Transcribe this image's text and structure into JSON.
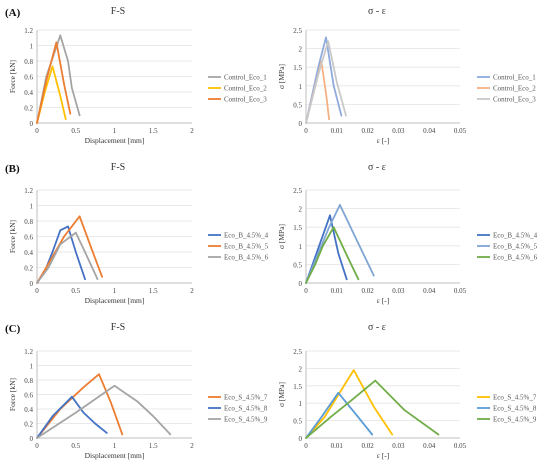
{
  "chart_data": [
    {
      "type": "line",
      "row_label": "(A)",
      "title": "F-S",
      "xlabel": "Displacement [mm]",
      "ylabel": "Force [kN]",
      "xlim": [
        0,
        2
      ],
      "ylim": [
        0,
        1.2
      ],
      "xticks": [
        "0",
        "0.5",
        "1",
        "1.5",
        "2"
      ],
      "yticks": [
        "0",
        "0.2",
        "0.4",
        "0.6",
        "0.8",
        "1",
        "1.2"
      ],
      "xtick_values": [
        0,
        0.5,
        1,
        1.5,
        2
      ],
      "ytick_values": [
        0,
        0.2,
        0.4,
        0.6,
        0.8,
        1,
        1.2
      ],
      "legend": "right",
      "series": [
        {
          "name": "Control_Eco_1",
          "color": "#a5a5a5",
          "x": [
            0,
            0.12,
            0.3,
            0.4,
            0.45,
            0.55
          ],
          "y": [
            0,
            0.6,
            1.13,
            0.8,
            0.45,
            0.1
          ]
        },
        {
          "name": "Control_Eco_2",
          "color": "#ffc000",
          "x": [
            0,
            0.1,
            0.2,
            0.3,
            0.37
          ],
          "y": [
            0,
            0.4,
            0.73,
            0.35,
            0.05
          ]
        },
        {
          "name": "Control_Eco_3",
          "color": "#ed7d31",
          "x": [
            0,
            0.12,
            0.25,
            0.35,
            0.43
          ],
          "y": [
            0,
            0.55,
            1.04,
            0.5,
            0.12
          ]
        }
      ]
    },
    {
      "type": "line",
      "row_label": "",
      "title": "σ - ε",
      "xlabel": "ε [-]",
      "ylabel": "σ [MPa]",
      "xlim": [
        0,
        0.05
      ],
      "ylim": [
        0,
        2.5
      ],
      "xticks": [
        "0",
        "0.01",
        "0.02",
        "0.03",
        "0.04",
        "0.05"
      ],
      "yticks": [
        "0",
        "0.5",
        "1",
        "1.5",
        "2",
        "2.5"
      ],
      "xtick_values": [
        0,
        0.01,
        0.02,
        0.03,
        0.04,
        0.05
      ],
      "ytick_values": [
        0,
        0.5,
        1,
        1.5,
        2,
        2.5
      ],
      "legend": "right",
      "series": [
        {
          "name": "Control_Eco_1",
          "color": "#8faadc",
          "x": [
            0,
            0.004,
            0.0065,
            0.009,
            0.0115
          ],
          "y": [
            0,
            1.5,
            2.3,
            1.0,
            0.2
          ]
        },
        {
          "name": "Control_Eco_2",
          "color": "#f4b183",
          "x": [
            0,
            0.003,
            0.005,
            0.0065,
            0.0075
          ],
          "y": [
            0,
            1.0,
            1.65,
            0.8,
            0.1
          ]
        },
        {
          "name": "Control_Eco_3",
          "color": "#c9c9c9",
          "x": [
            0,
            0.004,
            0.0072,
            0.01,
            0.013
          ],
          "y": [
            0,
            1.3,
            2.2,
            1.1,
            0.2
          ]
        }
      ]
    },
    {
      "type": "line",
      "row_label": "(B)",
      "title": "F-S",
      "xlabel": "Displacement [mm]",
      "ylabel": "Force [kN]",
      "xlim": [
        0,
        2
      ],
      "ylim": [
        0,
        1.2
      ],
      "xticks": [
        "0",
        "0.5",
        "1",
        "1.5",
        "2"
      ],
      "yticks": [
        "0",
        "0.2",
        "0.4",
        "0.6",
        "0.8",
        "1",
        "1.2"
      ],
      "xtick_values": [
        0,
        0.5,
        1,
        1.5,
        2
      ],
      "ytick_values": [
        0,
        0.2,
        0.4,
        0.6,
        0.8,
        1,
        1.2
      ],
      "legend": "right",
      "series": [
        {
          "name": "Eco_B_4.5%_4",
          "color": "#4472c4",
          "x": [
            0,
            0.1,
            0.2,
            0.3,
            0.4,
            0.5,
            0.62
          ],
          "y": [
            0,
            0.15,
            0.4,
            0.68,
            0.73,
            0.4,
            0.05
          ]
        },
        {
          "name": "Eco_B_4.5%_5",
          "color": "#ed7d31",
          "x": [
            0,
            0.15,
            0.35,
            0.55,
            0.7,
            0.84
          ],
          "y": [
            0,
            0.25,
            0.6,
            0.86,
            0.45,
            0.08
          ]
        },
        {
          "name": "Eco_B_4.5%_6",
          "color": "#a5a5a5",
          "x": [
            0,
            0.15,
            0.3,
            0.5,
            0.62,
            0.78
          ],
          "y": [
            0,
            0.2,
            0.5,
            0.65,
            0.4,
            0.05
          ]
        }
      ]
    },
    {
      "type": "line",
      "row_label": "",
      "title": "σ - ε",
      "xlabel": "ε [-]",
      "ylabel": "σ [MPa]",
      "xlim": [
        0,
        0.05
      ],
      "ylim": [
        0,
        2.5
      ],
      "xticks": [
        "0",
        "0.01",
        "0.02",
        "0.03",
        "0.04",
        "0.05"
      ],
      "yticks": [
        "0",
        "0.5",
        "1",
        "1.5",
        "2",
        "2.5"
      ],
      "xtick_values": [
        0,
        0.01,
        0.02,
        0.03,
        0.04,
        0.05
      ],
      "ytick_values": [
        0,
        0.5,
        1,
        1.5,
        2,
        2.5
      ],
      "legend": "right",
      "series": [
        {
          "name": "Eco_B_4.5%_4",
          "color": "#4472c4",
          "x": [
            0,
            0.003,
            0.0078,
            0.0105,
            0.0132
          ],
          "y": [
            0,
            0.7,
            1.82,
            0.8,
            0.1
          ]
        },
        {
          "name": "Eco_B_4.5%_5",
          "color": "#7fa5d3",
          "x": [
            0,
            0.004,
            0.0075,
            0.011,
            0.0162,
            0.022
          ],
          "y": [
            0,
            0.8,
            1.5,
            2.1,
            1.2,
            0.2
          ]
        },
        {
          "name": "Eco_B_4.5%_6",
          "color": "#70ad47",
          "x": [
            0,
            0.003,
            0.0055,
            0.009,
            0.0135,
            0.017
          ],
          "y": [
            0,
            0.5,
            1.0,
            1.5,
            0.7,
            0.1
          ]
        }
      ]
    },
    {
      "type": "line",
      "row_label": "(C)",
      "title": "F-S",
      "xlabel": "Displacement [mm]",
      "ylabel": "Force [kN]",
      "xlim": [
        0,
        2
      ],
      "ylim": [
        0,
        1.2
      ],
      "xticks": [
        "0",
        "0.5",
        "1",
        "1.5",
        "2"
      ],
      "yticks": [
        "0",
        "0.2",
        "0.4",
        "0.6",
        "0.8",
        "1",
        "1.2"
      ],
      "xtick_values": [
        0,
        0.5,
        1,
        1.5,
        2
      ],
      "ytick_values": [
        0,
        0.2,
        0.4,
        0.6,
        0.8,
        1,
        1.2
      ],
      "legend": "right",
      "series": [
        {
          "name": "Eco_S_4.5%_7",
          "color": "#ed7d31",
          "x": [
            0,
            0.3,
            0.6,
            0.8,
            0.95,
            1.1
          ],
          "y": [
            0,
            0.4,
            0.7,
            0.88,
            0.5,
            0.05
          ]
        },
        {
          "name": "Eco_S_4.5%_8",
          "color": "#4472c4",
          "x": [
            0,
            0.2,
            0.45,
            0.6,
            0.75,
            0.9
          ],
          "y": [
            0,
            0.3,
            0.57,
            0.35,
            0.2,
            0.07
          ]
        },
        {
          "name": "Eco_S_4.5%_9",
          "color": "#a5a5a5",
          "x": [
            0,
            0.5,
            1.0,
            1.3,
            1.5,
            1.72
          ],
          "y": [
            0,
            0.35,
            0.72,
            0.5,
            0.3,
            0.05
          ]
        }
      ]
    },
    {
      "type": "line",
      "row_label": "",
      "title": "σ - ε",
      "xlabel": "ε [-]",
      "ylabel": "σ [MPa]",
      "xlim": [
        0,
        0.05
      ],
      "ylim": [
        0,
        2.5
      ],
      "xticks": [
        "0",
        "0.01",
        "0.02",
        "0.03",
        "0.04",
        "0.05"
      ],
      "yticks": [
        "0",
        "0.5",
        "1",
        "1.5",
        "2",
        "2.5"
      ],
      "xtick_values": [
        0,
        0.01,
        0.02,
        0.03,
        0.04,
        0.05
      ],
      "ytick_values": [
        0,
        0.5,
        1,
        1.5,
        2,
        2.5
      ],
      "legend": "right",
      "series": [
        {
          "name": "Eco_S_4.5%_7",
          "color": "#ffc000",
          "x": [
            0,
            0.006,
            0.0155,
            0.022,
            0.028
          ],
          "y": [
            0,
            0.6,
            1.95,
            0.9,
            0.1
          ]
        },
        {
          "name": "Eco_S_4.5%_8",
          "color": "#5b9bd5",
          "x": [
            0,
            0.005,
            0.0105,
            0.016,
            0.0215
          ],
          "y": [
            0,
            0.6,
            1.3,
            0.7,
            0.1
          ]
        },
        {
          "name": "Eco_S_4.5%_9",
          "color": "#70ad47",
          "x": [
            0,
            0.008,
            0.015,
            0.0225,
            0.032,
            0.043
          ],
          "y": [
            0,
            0.6,
            1.1,
            1.65,
            0.8,
            0.1
          ]
        }
      ]
    }
  ]
}
